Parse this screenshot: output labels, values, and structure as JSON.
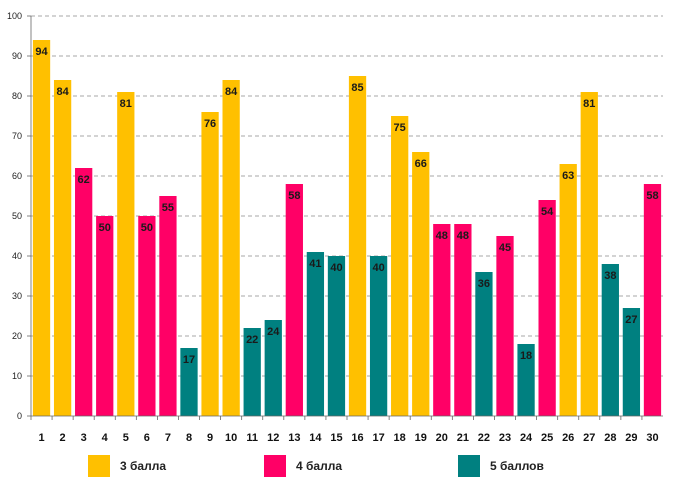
{
  "chart_data": {
    "type": "bar",
    "title": "",
    "xlabel": "",
    "ylabel": "",
    "ylim": [
      0,
      100
    ],
    "y_ticks": [
      "0",
      "10",
      "20",
      "30",
      "40",
      "50",
      "60",
      "70",
      "80",
      "90",
      "100"
    ],
    "grid": true,
    "categories": [
      "1",
      "2",
      "3",
      "4",
      "5",
      "6",
      "7",
      "8",
      "9",
      "10",
      "11",
      "12",
      "13",
      "14",
      "15",
      "16",
      "17",
      "18",
      "19",
      "20",
      "21",
      "22",
      "23",
      "24",
      "25",
      "26",
      "27",
      "28",
      "29",
      "30"
    ],
    "values": [
      94,
      84,
      62,
      50,
      81,
      50,
      55,
      17,
      76,
      84,
      22,
      24,
      58,
      41,
      40,
      85,
      40,
      75,
      66,
      48,
      48,
      36,
      45,
      18,
      54,
      63,
      81,
      38,
      27,
      58
    ],
    "grades": [
      "3",
      "3",
      "4",
      "4",
      "3",
      "4",
      "4",
      "5",
      "3",
      "3",
      "5",
      "5",
      "4",
      "5",
      "5",
      "3",
      "5",
      "3",
      "3",
      "4",
      "4",
      "5",
      "4",
      "5",
      "4",
      "3",
      "3",
      "5",
      "5",
      "4"
    ],
    "legend": [
      {
        "key": "3",
        "label": "3 балла",
        "color": "#FFC000"
      },
      {
        "key": "4",
        "label": "4 балла",
        "color": "#FF0066"
      },
      {
        "key": "5",
        "label": "5 баллов",
        "color": "#008080"
      }
    ]
  }
}
